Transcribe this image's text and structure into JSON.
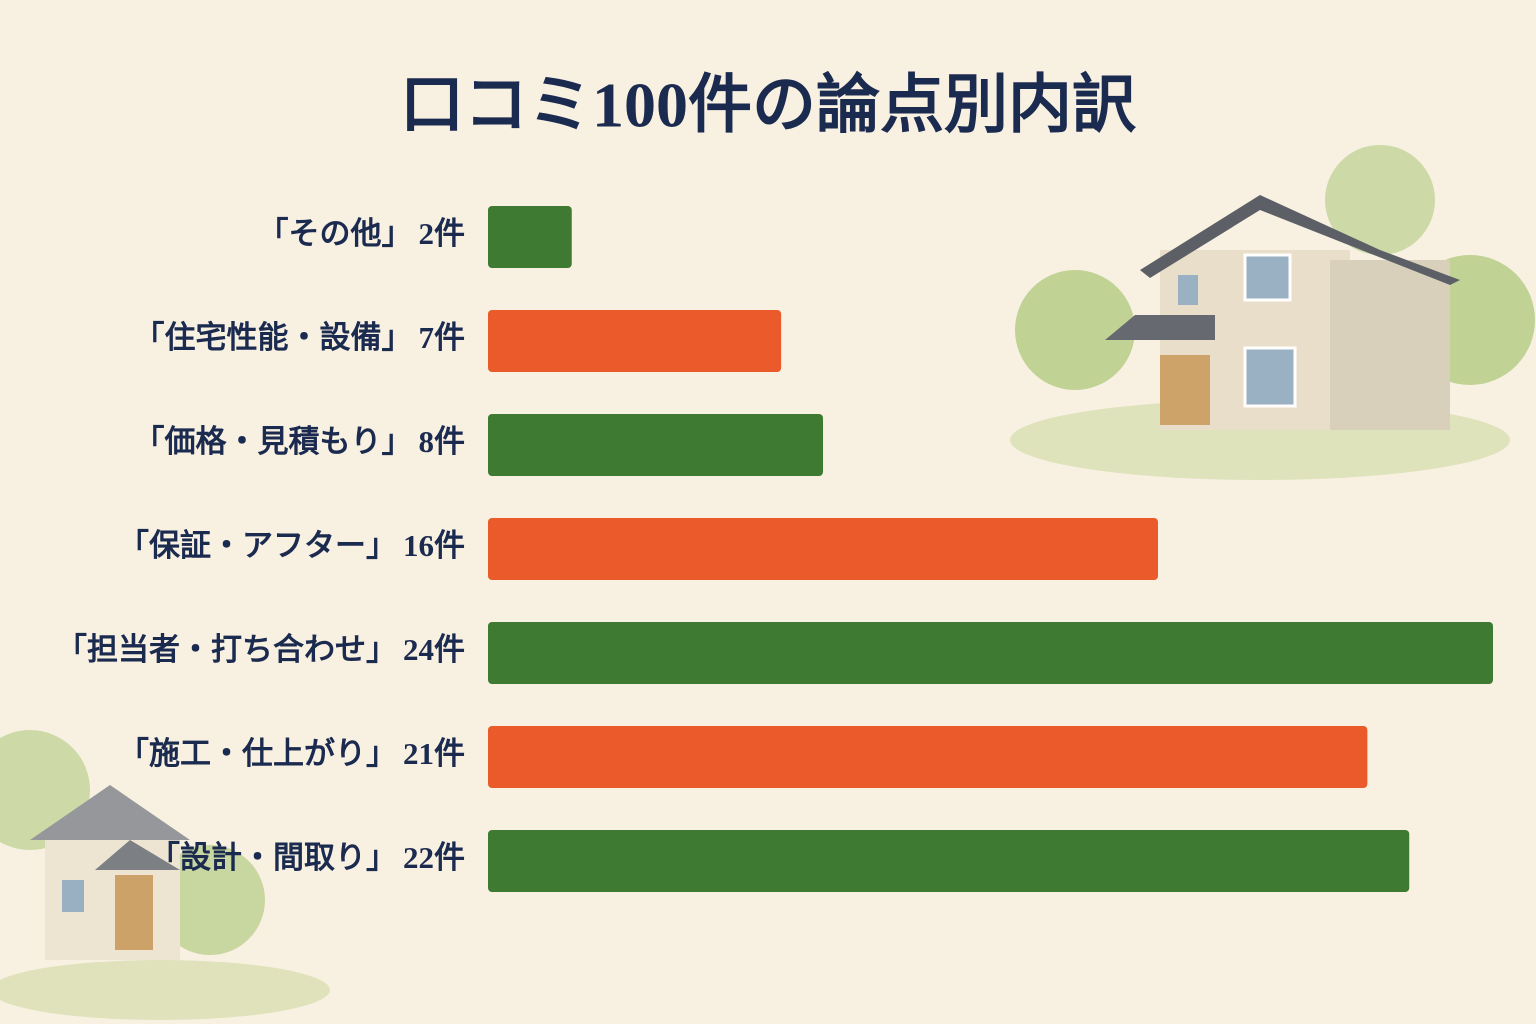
{
  "chart_data": {
    "type": "bar",
    "orientation": "horizontal",
    "title": "口コミ100件の論点別内訳",
    "categories": [
      "「その他」",
      "「住宅性能・設備」",
      "「価格・見積もり」",
      "「保証・アフター」",
      "「担当者・打ち合わせ」",
      "「施工・仕上がり」",
      "「設計・間取り」"
    ],
    "values": [
      2,
      7,
      8,
      16,
      24,
      21,
      22
    ],
    "value_labels": [
      "2件",
      "7件",
      "8件",
      "16件",
      "24件",
      "21件",
      "22件"
    ],
    "colors": [
      "#3f7a33",
      "#ea5a2b",
      "#3f7a33",
      "#ea5a2b",
      "#3f7a33",
      "#ea5a2b",
      "#3f7a33"
    ]
  }
}
